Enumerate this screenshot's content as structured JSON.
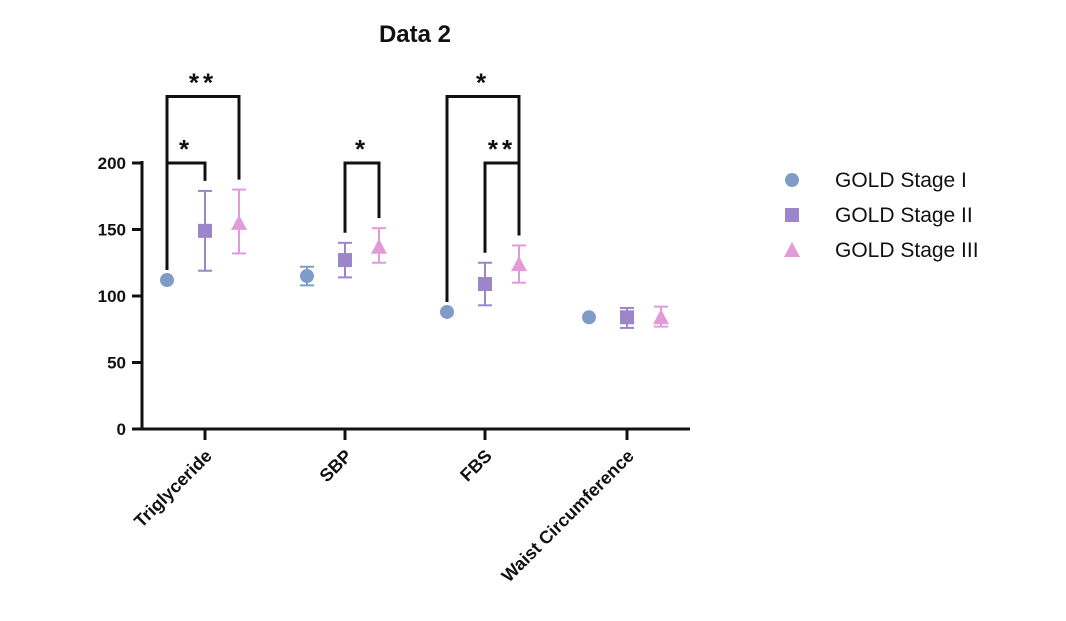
{
  "chart_data": {
    "type": "scatter",
    "title": "Data 2",
    "xlabel": "",
    "ylabel": "",
    "ylim": [
      0,
      200
    ],
    "yticks": [
      0,
      50,
      100,
      150,
      200
    ],
    "categories": [
      "Triglyceride",
      "SBP",
      "FBS",
      "Waist Circumference"
    ],
    "legend_position": "right",
    "series": [
      {
        "name": "GOLD Stage I",
        "marker": "circle",
        "color": "#7f9cc8",
        "values": [
          112,
          115,
          88,
          84
        ],
        "error_low": [
          null,
          108,
          null,
          null
        ],
        "error_high": [
          null,
          122,
          null,
          null
        ]
      },
      {
        "name": "GOLD Stage II",
        "marker": "square",
        "color": "#9b86c9",
        "values": [
          149,
          127,
          109,
          84
        ],
        "error_low": [
          119,
          114,
          93,
          76
        ],
        "error_high": [
          179,
          140,
          125,
          91
        ]
      },
      {
        "name": "GOLD Stage III",
        "marker": "triangle",
        "color": "#e29bd9",
        "values": [
          155,
          137,
          124,
          84
        ],
        "error_low": [
          132,
          125,
          110,
          77
        ],
        "error_high": [
          180,
          151,
          138,
          92
        ]
      }
    ],
    "significance": [
      {
        "category": 0,
        "from_series": 0,
        "to_series": 1,
        "label": "*"
      },
      {
        "category": 0,
        "from_series": 0,
        "to_series": 2,
        "label": "**"
      },
      {
        "category": 1,
        "from_series": 1,
        "to_series": 2,
        "label": "*"
      },
      {
        "category": 2,
        "from_series": 0,
        "to_series": 2,
        "label": "*"
      },
      {
        "category": 2,
        "from_series": 1,
        "to_series": 2,
        "label": "**"
      }
    ]
  }
}
